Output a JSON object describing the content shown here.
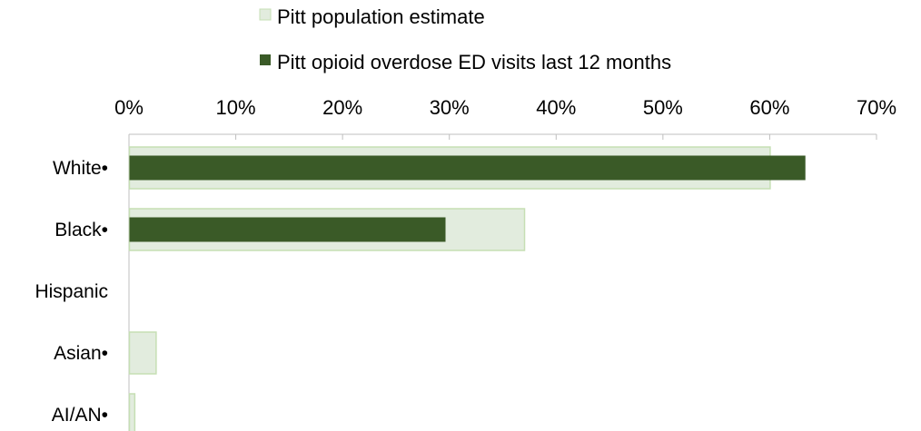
{
  "chart_data": {
    "type": "bar",
    "orientation": "horizontal",
    "categories": [
      "White•",
      "Black•",
      "Hispanic",
      "Asian•",
      "AI/AN•"
    ],
    "series": [
      {
        "name": "Pitt population estimate",
        "values": [
          60.0,
          37.0,
          0,
          2.5,
          0.5
        ],
        "color": "#e2ecde",
        "border": "#c6dfb4"
      },
      {
        "name": "Pitt opioid overdose ED visits last 12 months",
        "values": [
          63.3,
          29.6,
          0,
          0,
          0
        ],
        "color": "#3a5a27",
        "border": "#3a5a27"
      }
    ],
    "xlim": [
      0,
      70
    ],
    "ticks": [
      "0%",
      "10%",
      "20%",
      "30%",
      "40%",
      "50%",
      "60%",
      "70%"
    ],
    "axis_position": "top",
    "grid": false,
    "legend_position": "top"
  }
}
